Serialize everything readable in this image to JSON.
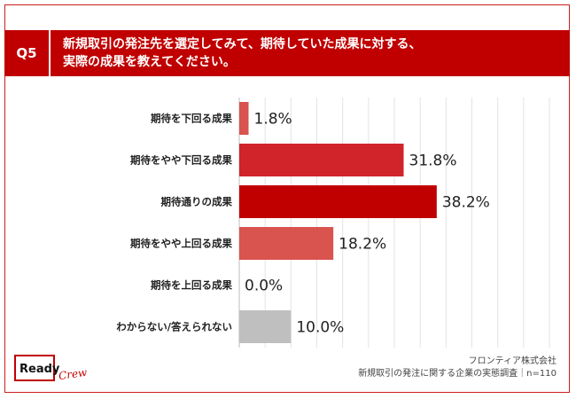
{
  "question": {
    "badge": "Q5",
    "line1": "新規取引の発注先を選定してみて、期待していた成果に対する、",
    "line2": "実際の成果を教えてください。"
  },
  "chart_data": {
    "type": "bar",
    "orientation": "horizontal",
    "categories": [
      "期待を下回る成果",
      "期待をやや下回る成果",
      "期待通りの成果",
      "期待をやや上回る成果",
      "期待を上回る成果",
      "わからない/答えられない"
    ],
    "values": [
      1.8,
      31.8,
      38.2,
      18.2,
      0.0,
      10.0
    ],
    "value_labels": [
      "1.8%",
      "31.8%",
      "38.2%",
      "18.2%",
      "0.0%",
      "10.0%"
    ],
    "colors": [
      "#d9534f",
      "#d0232a",
      "#c00000",
      "#d9534f",
      "#d9534f",
      "#bfbfbf"
    ],
    "xlim": [
      0,
      60
    ],
    "grid": true
  },
  "source": {
    "company": "フロンティア株式会社",
    "survey": "新規取引の発注に関する企業の実態調査｜n=110"
  },
  "logo": {
    "ready": "Ready",
    "crew": "Crew"
  }
}
